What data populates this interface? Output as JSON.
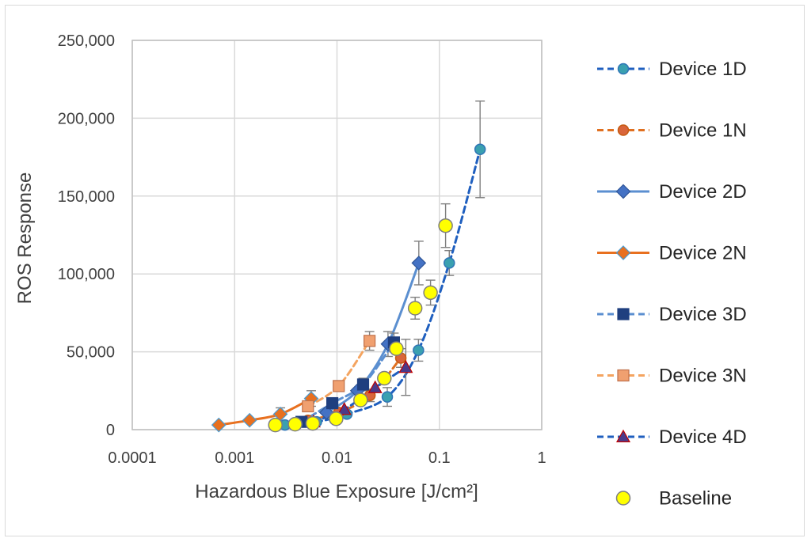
{
  "chart_data": {
    "type": "scatter",
    "xlabel": "Hazardous Blue Exposure [J/cm²]",
    "ylabel": "ROS Response",
    "xscale": "log",
    "xlim": [
      0.0001,
      1
    ],
    "ylim": [
      0,
      250000
    ],
    "x_tick_labels": [
      "0.0001",
      "0.001",
      "0.01",
      "0.1",
      "1"
    ],
    "y_tick_labels": [
      "0",
      "50,000",
      "100,000",
      "150,000",
      "200,000",
      "250,000"
    ],
    "x_ticks": [
      0.0001,
      0.001,
      0.01,
      0.1,
      1
    ],
    "y_ticks": [
      0,
      50000,
      100000,
      150000,
      200000,
      250000
    ],
    "grid": true,
    "legend_position": "right",
    "series": [
      {
        "name": "Device 1D",
        "line": "dashed",
        "marker": "circle",
        "line_color": "#1f5fbf",
        "marker_fill": "#3aa0b0",
        "marker_stroke": "#2e75b6",
        "points": [
          {
            "x": 0.0031,
            "y": 3000,
            "err": 0
          },
          {
            "x": 0.0063,
            "y": 5000,
            "err": 0
          },
          {
            "x": 0.0125,
            "y": 10000,
            "err": 0
          },
          {
            "x": 0.031,
            "y": 21000,
            "err": 6000
          },
          {
            "x": 0.0625,
            "y": 51000,
            "err": 7000
          },
          {
            "x": 0.125,
            "y": 107000,
            "err": 8000
          },
          {
            "x": 0.25,
            "y": 180000,
            "err": 31000
          }
        ]
      },
      {
        "name": "Device 1N",
        "line": "dashed",
        "marker": "circle",
        "line_color": "#e07020",
        "marker_fill": "#d9653b",
        "marker_stroke": "#c55a11",
        "points": [
          {
            "x": 0.0052,
            "y": 6000,
            "err": 0
          },
          {
            "x": 0.0104,
            "y": 11000,
            "err": 0
          },
          {
            "x": 0.021,
            "y": 22000,
            "err": 4000
          },
          {
            "x": 0.042,
            "y": 46000,
            "err": 6000
          }
        ]
      },
      {
        "name": "Device 2D",
        "line": "solid",
        "marker": "diamond",
        "line_color": "#5b8fd0",
        "marker_fill": "#4472c4",
        "marker_stroke": "#2f5597",
        "points": [
          {
            "x": 0.0079,
            "y": 11000,
            "err": 0
          },
          {
            "x": 0.0158,
            "y": 25000,
            "err": 0
          },
          {
            "x": 0.0315,
            "y": 55000,
            "err": 8000
          },
          {
            "x": 0.063,
            "y": 107000,
            "err": 14000
          }
        ]
      },
      {
        "name": "Device 2N",
        "line": "solid",
        "marker": "diamond",
        "line_color": "#e8701f",
        "marker_fill": "#e8701f",
        "marker_stroke": "#4a9bd1",
        "points": [
          {
            "x": 0.0007,
            "y": 3000,
            "err": 0
          },
          {
            "x": 0.0014,
            "y": 6000,
            "err": 0
          },
          {
            "x": 0.0028,
            "y": 10000,
            "err": 4000
          },
          {
            "x": 0.0056,
            "y": 20000,
            "err": 5000
          }
        ]
      },
      {
        "name": "Device 3D",
        "line": "dashed",
        "marker": "square",
        "line_color": "#5b8fd0",
        "marker_fill": "#1f3f7f",
        "marker_stroke": "#1f3f7f",
        "points": [
          {
            "x": 0.0045,
            "y": 5000,
            "err": 0
          },
          {
            "x": 0.009,
            "y": 17000,
            "err": 0
          },
          {
            "x": 0.018,
            "y": 29000,
            "err": 4000
          },
          {
            "x": 0.036,
            "y": 56000,
            "err": 6000
          }
        ]
      },
      {
        "name": "Device 3N",
        "line": "dashed",
        "marker": "square",
        "line_color": "#f4a460",
        "marker_fill": "#f0a070",
        "marker_stroke": "#c0704a",
        "points": [
          {
            "x": 0.0052,
            "y": 15000,
            "err": 0
          },
          {
            "x": 0.0104,
            "y": 28000,
            "err": 0
          },
          {
            "x": 0.0208,
            "y": 57000,
            "err": 6000
          }
        ]
      },
      {
        "name": "Device 4D",
        "line": "dashed",
        "marker": "triangle",
        "line_color": "#1f5fbf",
        "marker_fill": "#4a3a8a",
        "marker_stroke": "#c00000",
        "points": [
          {
            "x": 0.0059,
            "y": 5000,
            "err": 0
          },
          {
            "x": 0.0118,
            "y": 13000,
            "err": 0
          },
          {
            "x": 0.0236,
            "y": 27000,
            "err": 0
          },
          {
            "x": 0.047,
            "y": 40000,
            "err": 18000
          }
        ]
      },
      {
        "name": "Baseline",
        "line": "none",
        "marker": "circle",
        "line_color": "none",
        "marker_fill": "#ffff00",
        "marker_stroke": "#7f7f7f",
        "points": [
          {
            "x": 0.0025,
            "y": 3000,
            "err": 0
          },
          {
            "x": 0.0039,
            "y": 3500,
            "err": 0
          },
          {
            "x": 0.0058,
            "y": 4000,
            "err": 0
          },
          {
            "x": 0.0098,
            "y": 7000,
            "err": 0
          },
          {
            "x": 0.017,
            "y": 19000,
            "err": 0
          },
          {
            "x": 0.029,
            "y": 33000,
            "err": 0
          },
          {
            "x": 0.038,
            "y": 52000,
            "err": 0
          },
          {
            "x": 0.058,
            "y": 78000,
            "err": 7000
          },
          {
            "x": 0.082,
            "y": 88000,
            "err": 8000
          },
          {
            "x": 0.115,
            "y": 131000,
            "err": 14000
          }
        ]
      }
    ]
  }
}
